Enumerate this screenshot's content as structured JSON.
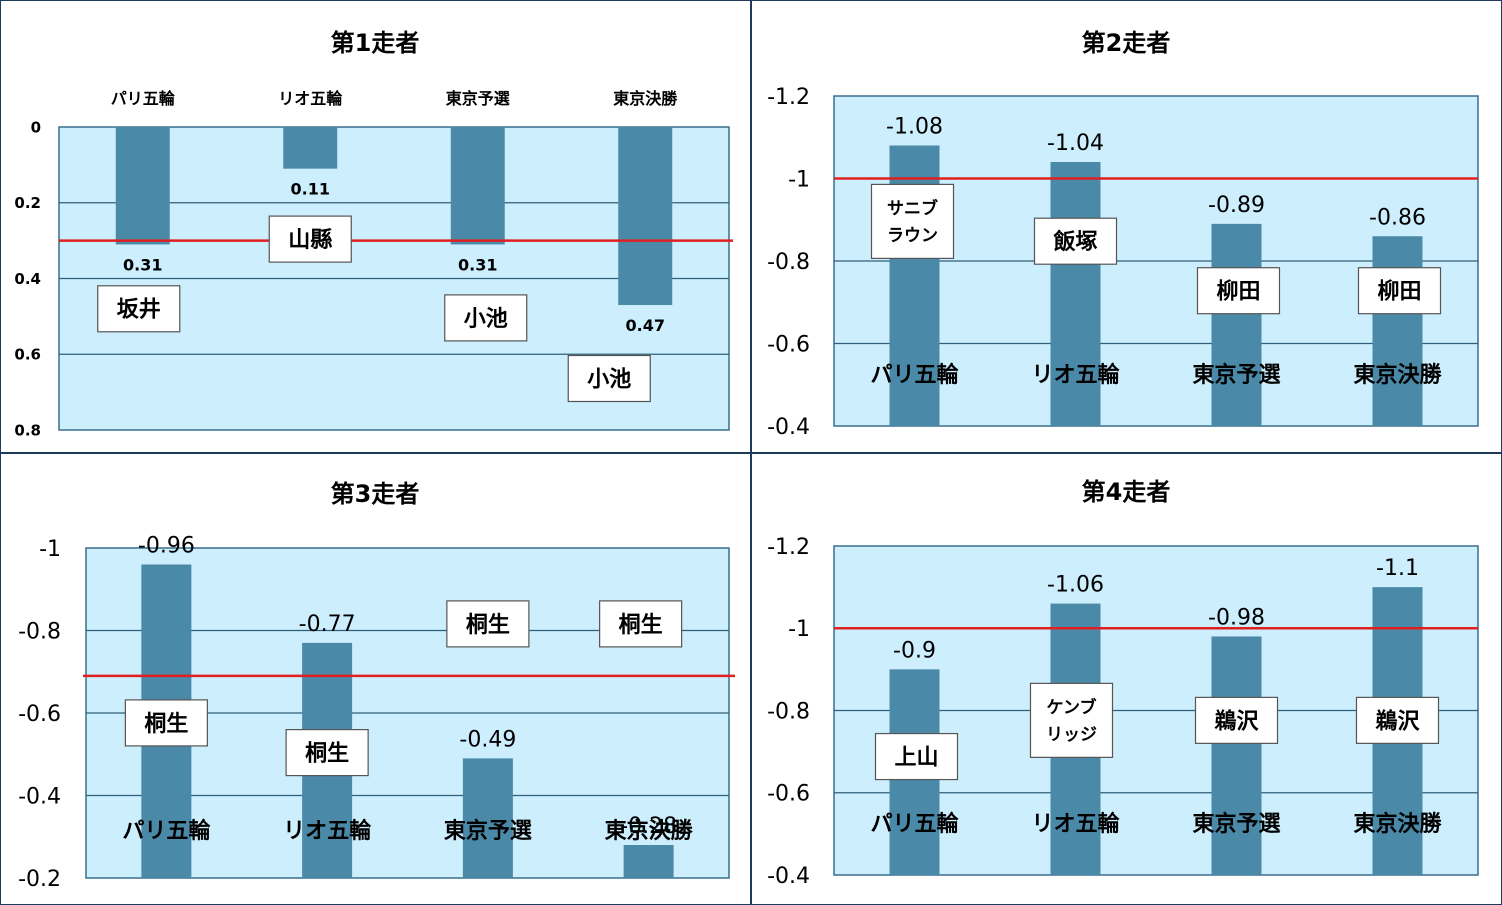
{
  "chart_data": [
    {
      "type": "bar",
      "title": "第1走者",
      "categories": [
        "パリ五輪",
        "リオ五輪",
        "東京予選",
        "東京決勝"
      ],
      "values": [
        0.31,
        0.11,
        0.31,
        0.47
      ],
      "data_labels": [
        "0.31",
        "0.11",
        "0.31",
        "0.47"
      ],
      "runners": [
        "坂井",
        "山縣",
        "小池",
        "小池"
      ],
      "ylim": [
        0,
        0.8
      ],
      "y_ticks": [
        0,
        0.2,
        0.4,
        0.6,
        0.8
      ],
      "y_tick_labels": [
        "0",
        "0.2",
        "0.4",
        "0.6",
        "0.8"
      ],
      "y_axis_reversed": true,
      "reference_line": 0.3,
      "category_labels_position": "top",
      "grid": true,
      "colors": {
        "bar": "#4a8aa8",
        "plot_bg": "#cdeefc",
        "reference_line": "#e02020",
        "grid": "#2f5f7a"
      }
    },
    {
      "type": "bar",
      "title": "第2走者",
      "categories": [
        "パリ五輪",
        "リオ五輪",
        "東京予選",
        "東京決勝"
      ],
      "values": [
        -1.08,
        -1.04,
        -0.89,
        -0.86
      ],
      "data_labels": [
        "-1.08",
        "-1.04",
        "-0.89",
        "-0.86"
      ],
      "runners": [
        [
          "サニブ",
          "ラウン"
        ],
        "飯塚",
        "柳田",
        "柳田"
      ],
      "ylim": [
        -0.4,
        -1.2
      ],
      "y_ticks": [
        -1.2,
        -1,
        -0.8,
        -0.6,
        -0.4
      ],
      "y_tick_labels": [
        "-1.2",
        "-1",
        "-0.8",
        "-0.6",
        "-0.4"
      ],
      "y_axis_reversed": true,
      "reference_line": -1.0,
      "category_labels_position": "inside-bottom",
      "grid": true,
      "colors": {
        "bar": "#4a8aa8",
        "plot_bg": "#cdeefc",
        "reference_line": "#e02020",
        "grid": "#2f5f7a"
      }
    },
    {
      "type": "bar",
      "title": "第3走者",
      "categories": [
        "パリ五輪",
        "リオ五輪",
        "東京予選",
        "東京決勝"
      ],
      "values": [
        -0.96,
        -0.77,
        -0.49,
        -0.28
      ],
      "data_labels": [
        "-0.96",
        "-0.77",
        "-0.49",
        "-0.28"
      ],
      "runners": [
        "桐生",
        "桐生",
        "桐生",
        "桐生"
      ],
      "ylim": [
        -0.2,
        -1.0
      ],
      "y_ticks": [
        -1,
        -0.8,
        -0.6,
        -0.4,
        -0.2
      ],
      "y_tick_labels": [
        "-1",
        "-0.8",
        "-0.6",
        "-0.4",
        "-0.2"
      ],
      "y_axis_reversed": true,
      "reference_line": -0.69,
      "category_labels_position": "inside-bottom",
      "grid": true,
      "colors": {
        "bar": "#4a8aa8",
        "plot_bg": "#cdeefc",
        "reference_line": "#e02020",
        "grid": "#2f5f7a"
      }
    },
    {
      "type": "bar",
      "title": "第4走者",
      "categories": [
        "パリ五輪",
        "リオ五輪",
        "東京予選",
        "東京決勝"
      ],
      "values": [
        -0.9,
        -1.06,
        -0.98,
        -1.1
      ],
      "data_labels": [
        "-0.9",
        "-1.06",
        "-0.98",
        "-1.1"
      ],
      "runners": [
        "上山",
        [
          "ケンブ",
          "リッジ"
        ],
        "鵜沢",
        "鵜沢"
      ],
      "ylim": [
        -0.4,
        -1.2
      ],
      "y_ticks": [
        -1.2,
        -1,
        -0.8,
        -0.6,
        -0.4
      ],
      "y_tick_labels": [
        "-1.2",
        "-1",
        "-0.8",
        "-0.6",
        "-0.4"
      ],
      "y_axis_reversed": true,
      "reference_line": -1.0,
      "category_labels_position": "inside-bottom",
      "grid": true,
      "colors": {
        "bar": "#4a8aa8",
        "plot_bg": "#cdeefc",
        "reference_line": "#e02020",
        "grid": "#2f5f7a"
      }
    }
  ]
}
